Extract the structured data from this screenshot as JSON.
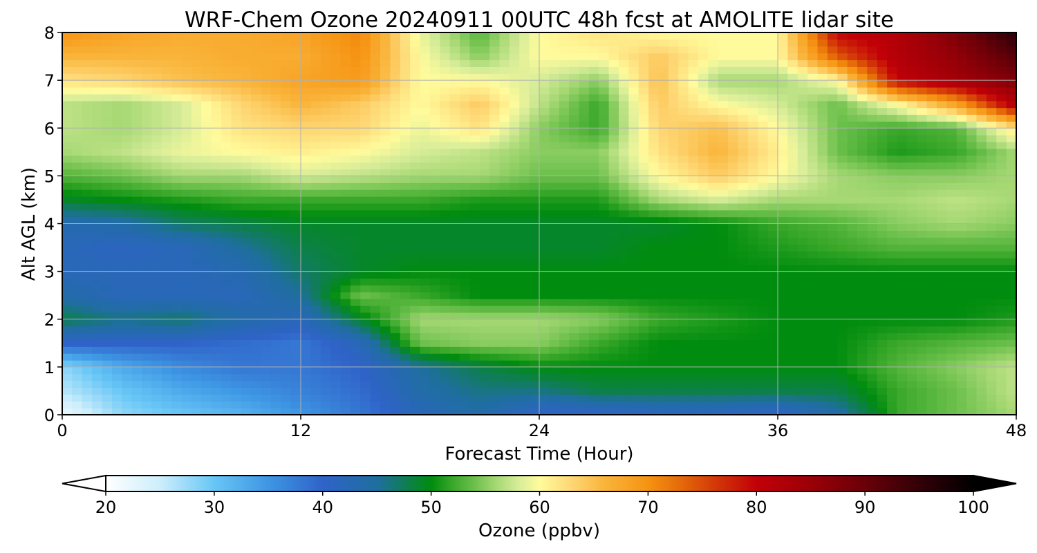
{
  "chart_data": {
    "type": "heatmap",
    "title": "WRF-Chem Ozone  20240911 00UTC 48h fcst at AMOLITE lidar site",
    "xlabel": "Forecast Time (Hour)",
    "ylabel": "Alt AGL (km)",
    "xlim": [
      0,
      48
    ],
    "ylim": [
      0,
      8
    ],
    "xticks": [
      "0",
      "12",
      "24",
      "36",
      "48"
    ],
    "yticks": [
      "0",
      "1",
      "2",
      "3",
      "4",
      "5",
      "6",
      "7",
      "8"
    ],
    "grid": true,
    "x": [
      0,
      3,
      6,
      9,
      12,
      15,
      18,
      21,
      24,
      27,
      30,
      33,
      36,
      39,
      42,
      45,
      48
    ],
    "y": [
      0,
      0.5,
      1,
      1.5,
      2,
      2.5,
      3,
      3.5,
      4,
      4.5,
      5,
      5.5,
      6,
      6.5,
      7,
      7.5,
      8
    ],
    "z": [
      [
        22,
        28,
        30,
        32,
        35,
        38,
        42,
        44,
        40,
        40,
        41,
        41,
        40,
        44,
        52,
        54,
        56
      ],
      [
        26,
        30,
        33,
        35,
        37,
        39,
        44,
        46,
        46,
        48,
        48,
        48,
        48,
        48,
        52,
        54,
        57
      ],
      [
        28,
        33,
        36,
        38,
        38,
        40,
        45,
        48,
        50,
        50,
        50,
        50,
        50,
        50,
        53,
        55,
        57
      ],
      [
        40,
        40,
        40,
        39,
        38,
        42,
        54,
        55,
        55,
        52,
        50,
        50,
        50,
        50,
        52,
        53,
        54
      ],
      [
        48,
        46,
        47,
        44,
        42,
        49,
        56,
        56,
        56,
        55,
        52,
        51,
        50,
        50,
        50,
        50,
        51
      ],
      [
        44,
        42,
        42,
        42,
        45,
        54,
        52,
        50,
        50,
        50,
        50,
        50,
        50,
        50,
        50,
        50,
        50
      ],
      [
        42,
        42,
        42,
        43,
        47,
        49,
        50,
        50,
        50,
        50,
        50,
        50,
        50,
        50,
        50,
        50,
        50
      ],
      [
        42,
        41,
        42,
        45,
        48,
        49,
        49,
        49,
        49,
        49,
        50,
        50,
        51,
        52,
        53,
        53,
        53
      ],
      [
        43,
        44,
        47,
        48,
        49,
        49,
        49,
        49,
        49,
        49,
        49,
        50,
        52,
        53,
        55,
        56,
        55
      ],
      [
        49,
        50,
        51,
        52,
        52,
        52,
        52,
        51,
        51,
        51,
        56,
        58,
        56,
        56,
        56,
        57,
        56
      ],
      [
        53,
        54,
        56,
        56,
        58,
        57,
        56,
        56,
        54,
        54,
        60,
        64,
        60,
        56,
        55,
        55,
        56
      ],
      [
        56,
        57,
        59,
        60,
        61,
        60,
        58,
        57,
        55,
        55,
        62,
        66,
        61,
        54,
        51,
        52,
        56
      ],
      [
        57,
        56,
        58,
        62,
        63,
        63,
        59,
        62,
        55,
        52,
        63,
        65,
        60,
        54,
        52,
        53,
        62
      ],
      [
        57,
        56,
        58,
        63,
        66,
        64,
        60,
        64,
        57,
        52,
        64,
        60,
        58,
        54,
        60,
        68,
        82
      ],
      [
        62,
        63,
        65,
        66,
        68,
        69,
        60,
        60,
        58,
        55,
        65,
        56,
        56,
        60,
        80,
        84,
        88
      ],
      [
        66,
        66,
        66,
        67,
        67,
        70,
        60,
        55,
        60,
        60,
        64,
        60,
        60,
        74,
        82,
        86,
        92
      ],
      [
        70,
        68,
        67,
        67,
        68,
        71,
        59,
        53,
        60,
        62,
        60,
        60,
        60,
        80,
        82,
        88,
        96
      ]
    ],
    "colorbar": {
      "label": "Ozone  (ppbv)",
      "min": 20,
      "max": 100,
      "extend": "both",
      "ticks": [
        "20",
        "30",
        "40",
        "50",
        "60",
        "70",
        "80",
        "90",
        "100"
      ],
      "stops": [
        [
          20,
          "#ffffff"
        ],
        [
          25,
          "#cdeefb"
        ],
        [
          30,
          "#67c6f6"
        ],
        [
          35,
          "#3e96e4"
        ],
        [
          40,
          "#2f63c8"
        ],
        [
          45,
          "#1f6ea0"
        ],
        [
          50,
          "#008c0e"
        ],
        [
          52,
          "#3aa82a"
        ],
        [
          54,
          "#6cc04c"
        ],
        [
          56,
          "#a6d874"
        ],
        [
          58,
          "#d6ec98"
        ],
        [
          60,
          "#fffb9c"
        ],
        [
          63,
          "#fed673"
        ],
        [
          66,
          "#f9b43a"
        ],
        [
          70,
          "#f69312"
        ],
        [
          73,
          "#e56a09"
        ],
        [
          76,
          "#d43b08"
        ],
        [
          80,
          "#c20008"
        ],
        [
          85,
          "#9b0008"
        ],
        [
          90,
          "#6a0008"
        ],
        [
          95,
          "#330008"
        ],
        [
          100,
          "#000000"
        ]
      ]
    }
  }
}
